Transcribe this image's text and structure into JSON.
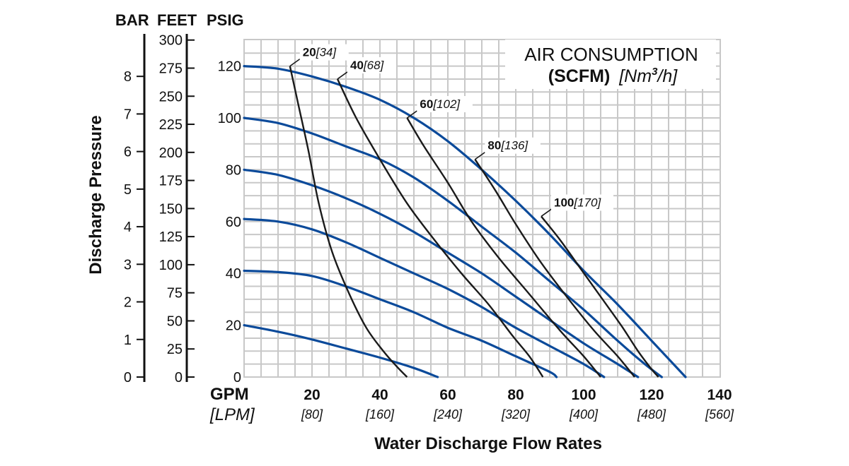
{
  "chart_data": {
    "type": "line",
    "title": "AIR CONSUMPTION",
    "subtitle_bold": "(SCFM)",
    "subtitle_unit_prefix": "[Nm",
    "subtitle_unit_sup": "3",
    "subtitle_unit_suffix": "/h]",
    "xlabel": "Water Discharge Flow Rates",
    "xunit_primary": "GPM",
    "xunit_secondary": "[LPM]",
    "ylabel": "Discharge Pressure",
    "xlim": [
      0,
      140
    ],
    "ylim": [
      0,
      125
    ],
    "grid": true,
    "x_ticks_gpm": [
      "20",
      "40",
      "60",
      "80",
      "100",
      "120",
      "140"
    ],
    "x_ticks_lpm": [
      "[80]",
      "[160]",
      "[240]",
      "[320]",
      "[400]",
      "[480]",
      "[560]"
    ],
    "y_axes": [
      {
        "header": "BAR",
        "ticks": [
          "0",
          "1",
          "2",
          "3",
          "4",
          "5",
          "6",
          "7",
          "8"
        ]
      },
      {
        "header": "FEET",
        "ticks": [
          "0",
          "25",
          "50",
          "75",
          "100",
          "125",
          "150",
          "175",
          "200",
          "225",
          "250",
          "275",
          "300"
        ]
      },
      {
        "header": "PSIG",
        "ticks": [
          "0",
          "20",
          "40",
          "60",
          "80",
          "100",
          "120"
        ]
      }
    ],
    "pressure_series": [
      {
        "name": "120 psig",
        "points": [
          [
            0,
            120
          ],
          [
            10,
            119
          ],
          [
            20,
            116
          ],
          [
            30,
            112
          ],
          [
            40,
            107
          ],
          [
            50,
            100
          ],
          [
            60,
            91
          ],
          [
            70,
            80
          ],
          [
            80,
            68
          ],
          [
            90,
            55
          ],
          [
            100,
            41
          ],
          [
            110,
            28
          ],
          [
            120,
            14
          ],
          [
            130,
            0
          ]
        ]
      },
      {
        "name": "100 psig",
        "points": [
          [
            0,
            100
          ],
          [
            10,
            98
          ],
          [
            20,
            94
          ],
          [
            30,
            89
          ],
          [
            40,
            84
          ],
          [
            50,
            77
          ],
          [
            60,
            68
          ],
          [
            70,
            58
          ],
          [
            80,
            48
          ],
          [
            90,
            37
          ],
          [
            100,
            26
          ],
          [
            110,
            14
          ],
          [
            118,
            5
          ],
          [
            123,
            0
          ]
        ]
      },
      {
        "name": "80 psig",
        "points": [
          [
            0,
            80
          ],
          [
            10,
            78
          ],
          [
            20,
            74
          ],
          [
            30,
            69
          ],
          [
            40,
            63
          ],
          [
            50,
            56
          ],
          [
            60,
            48
          ],
          [
            70,
            40
          ],
          [
            80,
            31
          ],
          [
            90,
            22
          ],
          [
            100,
            13
          ],
          [
            110,
            5
          ],
          [
            116,
            0
          ]
        ]
      },
      {
        "name": "60 psig",
        "points": [
          [
            0,
            61
          ],
          [
            10,
            60
          ],
          [
            20,
            57
          ],
          [
            30,
            52
          ],
          [
            40,
            46
          ],
          [
            50,
            40
          ],
          [
            60,
            34
          ],
          [
            70,
            27
          ],
          [
            80,
            19
          ],
          [
            90,
            12
          ],
          [
            100,
            5
          ],
          [
            106,
            0
          ]
        ]
      },
      {
        "name": "40 psig",
        "points": [
          [
            0,
            41
          ],
          [
            10,
            40.5
          ],
          [
            20,
            39
          ],
          [
            30,
            35
          ],
          [
            40,
            30
          ],
          [
            50,
            25
          ],
          [
            60,
            19
          ],
          [
            70,
            14
          ],
          [
            80,
            8
          ],
          [
            90,
            2
          ],
          [
            92,
            0
          ]
        ]
      },
      {
        "name": "20 psig",
        "points": [
          [
            0,
            20
          ],
          [
            10,
            17.5
          ],
          [
            20,
            14.5
          ],
          [
            30,
            11
          ],
          [
            40,
            7.5
          ],
          [
            50,
            3.5
          ],
          [
            57,
            0
          ]
        ]
      }
    ],
    "air_series": [
      {
        "name": "20 SCFM",
        "label_value": "20",
        "label_metric": "[34]",
        "points": [
          [
            13.5,
            120
          ],
          [
            16,
            105
          ],
          [
            19,
            87
          ],
          [
            22,
            67
          ],
          [
            26,
            48
          ],
          [
            31,
            32
          ],
          [
            36,
            19
          ],
          [
            41,
            10
          ],
          [
            45,
            4
          ],
          [
            48,
            0
          ]
        ]
      },
      {
        "name": "40 SCFM",
        "label_value": "40",
        "label_metric": "[68]",
        "points": [
          [
            27.5,
            115
          ],
          [
            33,
            100
          ],
          [
            40,
            84
          ],
          [
            48,
            67
          ],
          [
            56,
            53
          ],
          [
            64,
            40
          ],
          [
            72,
            28
          ],
          [
            79,
            16
          ],
          [
            84,
            8
          ],
          [
            88,
            0
          ]
        ]
      },
      {
        "name": "60 SCFM",
        "label_value": "60",
        "label_metric": "[102]",
        "points": [
          [
            48,
            100
          ],
          [
            53,
            89
          ],
          [
            60,
            75
          ],
          [
            67,
            60
          ],
          [
            75,
            46
          ],
          [
            84,
            32
          ],
          [
            93,
            18
          ],
          [
            100,
            8
          ],
          [
            105,
            0
          ]
        ]
      },
      {
        "name": "80 SCFM",
        "label_value": "80",
        "label_metric": "[136]",
        "points": [
          [
            68,
            84
          ],
          [
            74,
            72
          ],
          [
            80,
            59
          ],
          [
            87,
            45
          ],
          [
            95,
            31
          ],
          [
            103,
            18
          ],
          [
            110,
            8
          ],
          [
            115,
            0
          ]
        ]
      },
      {
        "name": "100 SCFM",
        "label_value": "100",
        "label_metric": "[170]",
        "points": [
          [
            87.5,
            62
          ],
          [
            93,
            53
          ],
          [
            99,
            42
          ],
          [
            105,
            31
          ],
          [
            111,
            20
          ],
          [
            116,
            10
          ],
          [
            120,
            3
          ],
          [
            122,
            0
          ]
        ]
      }
    ]
  }
}
